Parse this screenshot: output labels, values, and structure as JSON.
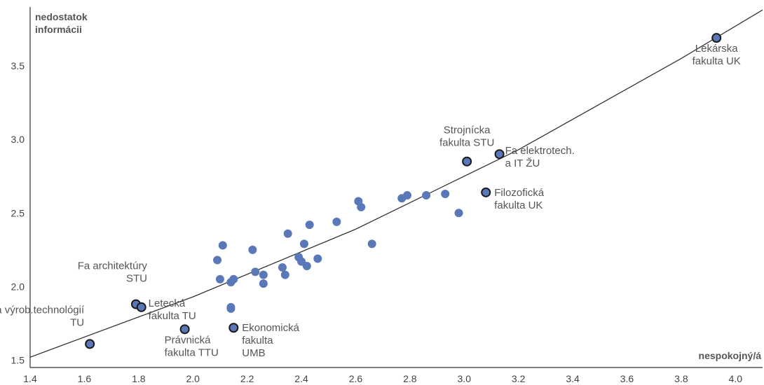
{
  "chart_data": {
    "type": "scatter",
    "ylabel": [
      "nedostatok",
      "informácii"
    ],
    "xlabel": "nespokojný/á",
    "xlim": [
      1.4,
      4.1
    ],
    "ylim": [
      1.45,
      3.9
    ],
    "xticks": [
      "1.4",
      "1.6",
      "1.8",
      "2.0",
      "2.2",
      "2.4",
      "2.6",
      "2.8",
      "3.0",
      "3.2",
      "3.4",
      "3.6",
      "3.8",
      "4.0"
    ],
    "yticks": [
      "1.5",
      "2.0",
      "2.5",
      "3.0",
      "3.5"
    ],
    "colors": {
      "point_fill": "#5a78b8",
      "highlight_stroke": "#1a1a1a",
      "trend_line": "#333333",
      "axis": "#333333"
    },
    "trend_line": [
      [
        1.4,
        1.52
      ],
      [
        2.0,
        1.93
      ],
      [
        2.6,
        2.39
      ],
      [
        3.2,
        2.93
      ],
      [
        3.8,
        3.55
      ],
      [
        4.1,
        3.88
      ]
    ],
    "points": [
      {
        "x": 2.09,
        "y": 2.18
      },
      {
        "x": 2.11,
        "y": 2.28
      },
      {
        "x": 2.1,
        "y": 2.05
      },
      {
        "x": 2.15,
        "y": 2.05
      },
      {
        "x": 2.14,
        "y": 2.03
      },
      {
        "x": 2.14,
        "y": 1.86
      },
      {
        "x": 2.14,
        "y": 1.85
      },
      {
        "x": 2.22,
        "y": 2.25
      },
      {
        "x": 2.23,
        "y": 2.1
      },
      {
        "x": 2.26,
        "y": 2.08
      },
      {
        "x": 2.26,
        "y": 2.02
      },
      {
        "x": 2.33,
        "y": 2.13
      },
      {
        "x": 2.34,
        "y": 2.08
      },
      {
        "x": 2.35,
        "y": 2.36
      },
      {
        "x": 2.39,
        "y": 2.2
      },
      {
        "x": 2.4,
        "y": 2.17
      },
      {
        "x": 2.41,
        "y": 2.29
      },
      {
        "x": 2.42,
        "y": 2.14
      },
      {
        "x": 2.43,
        "y": 2.42
      },
      {
        "x": 2.46,
        "y": 2.19
      },
      {
        "x": 2.53,
        "y": 2.44
      },
      {
        "x": 2.61,
        "y": 2.58
      },
      {
        "x": 2.62,
        "y": 2.54
      },
      {
        "x": 2.66,
        "y": 2.29
      },
      {
        "x": 2.77,
        "y": 2.6
      },
      {
        "x": 2.79,
        "y": 2.62
      },
      {
        "x": 2.86,
        "y": 2.62
      },
      {
        "x": 2.93,
        "y": 2.63
      },
      {
        "x": 2.98,
        "y": 2.5
      }
    ],
    "highlighted": [
      {
        "x": 1.62,
        "y": 1.61,
        "label": [
          "Fa výrob.technológií",
          "TU"
        ]
      },
      {
        "x": 1.79,
        "y": 1.88,
        "label": [
          "Fa architektúry",
          "STU"
        ]
      },
      {
        "x": 1.81,
        "y": 1.86,
        "label": [
          "Letecká",
          "fakulta TU"
        ]
      },
      {
        "x": 1.97,
        "y": 1.71,
        "label": [
          "Právnická",
          "fakulta TTU"
        ]
      },
      {
        "x": 2.15,
        "y": 1.72,
        "label": [
          "Ekonomická",
          "fakulta",
          "UMB"
        ]
      },
      {
        "x": 3.01,
        "y": 2.85,
        "label": [
          "Strojnícka",
          "fakulta STU"
        ]
      },
      {
        "x": 3.13,
        "y": 2.9,
        "label": [
          "Fa elektrotech.",
          "a IT ŽU"
        ]
      },
      {
        "x": 3.08,
        "y": 2.64,
        "label": [
          "Filozofická",
          "fakulta UK"
        ]
      },
      {
        "x": 3.93,
        "y": 3.69,
        "label": [
          "Lekárska",
          "fakulta UK"
        ]
      }
    ]
  }
}
